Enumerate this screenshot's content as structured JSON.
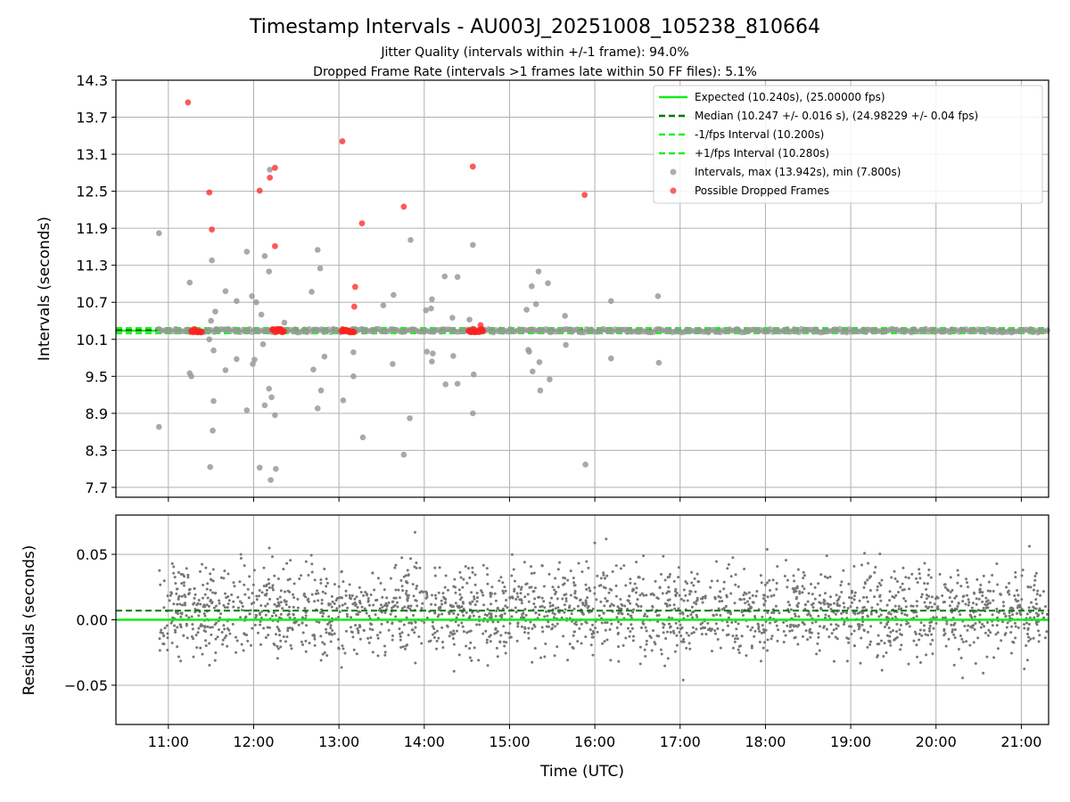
{
  "chart_data": {
    "type": "scatter",
    "title": "Timestamp Intervals - AU003J_20251008_105238_810664",
    "subtitle_line1": "Jitter Quality (intervals within +/-1 frame): 94.0%",
    "subtitle_line2": "Dropped Frame Rate (intervals >1 frames late within 50 FF files): 5.1%",
    "xlabel": "Time (UTC)",
    "x_ticks": [
      "11:00",
      "12:00",
      "13:00",
      "14:00",
      "15:00",
      "16:00",
      "17:00",
      "18:00",
      "19:00",
      "20:00",
      "21:00"
    ],
    "x_range_hours": [
      10.385,
      21.32
    ],
    "top": {
      "ylabel": "Intervals (seconds)",
      "ylim": [
        7.54,
        14.3
      ],
      "y_ticks": [
        "7.7",
        "8.3",
        "8.9",
        "9.5",
        "10.1",
        "10.7",
        "11.3",
        "11.9",
        "12.5",
        "13.1",
        "13.7",
        "14.3"
      ],
      "expected": 10.24,
      "median": 10.247,
      "minus_interval": 10.2,
      "plus_interval": 10.28,
      "legend_position": "top-right",
      "legend": [
        "Expected (10.240s), (25.00000 fps)",
        "Median (10.247 +/- 0.016 s), (24.98229 +/- 0.04 fps)",
        "-1/fps Interval (10.200s)",
        "+1/fps Interval (10.280s)",
        "Intervals, max (13.942s), min (7.800s)",
        "Possible Dropped Frames"
      ],
      "gray_outliers": [
        [
          10.89,
          11.82
        ],
        [
          10.89,
          8.68
        ],
        [
          11.25,
          11.02
        ],
        [
          11.25,
          9.55
        ],
        [
          11.27,
          9.5
        ],
        [
          11.48,
          10.1
        ],
        [
          11.49,
          8.03
        ],
        [
          11.5,
          10.4
        ],
        [
          11.51,
          11.38
        ],
        [
          11.52,
          8.62
        ],
        [
          11.53,
          9.1
        ],
        [
          11.53,
          9.92
        ],
        [
          11.55,
          10.55
        ],
        [
          11.67,
          9.6
        ],
        [
          11.67,
          10.88
        ],
        [
          11.8,
          10.72
        ],
        [
          11.8,
          9.78
        ],
        [
          11.92,
          11.52
        ],
        [
          11.92,
          8.95
        ],
        [
          11.98,
          10.8
        ],
        [
          11.99,
          9.7
        ],
        [
          12.01,
          9.77
        ],
        [
          12.03,
          10.7
        ],
        [
          12.07,
          8.02
        ],
        [
          12.09,
          10.5
        ],
        [
          12.11,
          10.02
        ],
        [
          12.13,
          11.45
        ],
        [
          12.13,
          9.03
        ],
        [
          12.18,
          11.2
        ],
        [
          12.18,
          9.3
        ],
        [
          12.19,
          12.85
        ],
        [
          12.2,
          7.82
        ],
        [
          12.21,
          9.16
        ],
        [
          12.25,
          8.87
        ],
        [
          12.26,
          8.0
        ],
        [
          12.36,
          10.37
        ],
        [
          12.68,
          10.87
        ],
        [
          12.7,
          9.61
        ],
        [
          12.75,
          11.55
        ],
        [
          12.75,
          8.98
        ],
        [
          12.78,
          11.25
        ],
        [
          12.79,
          9.27
        ],
        [
          12.83,
          9.82
        ],
        [
          13.05,
          9.11
        ],
        [
          13.17,
          9.89
        ],
        [
          13.17,
          9.5
        ],
        [
          13.28,
          8.51
        ],
        [
          13.52,
          10.65
        ],
        [
          13.63,
          9.7
        ],
        [
          13.64,
          10.82
        ],
        [
          13.76,
          8.23
        ],
        [
          13.83,
          8.82
        ],
        [
          13.84,
          11.71
        ],
        [
          14.02,
          10.57
        ],
        [
          14.03,
          9.9
        ],
        [
          14.08,
          10.6
        ],
        [
          14.09,
          9.74
        ],
        [
          14.09,
          10.75
        ],
        [
          14.1,
          9.87
        ],
        [
          14.24,
          11.12
        ],
        [
          14.25,
          9.37
        ],
        [
          14.33,
          10.45
        ],
        [
          14.34,
          9.83
        ],
        [
          14.39,
          11.11
        ],
        [
          14.39,
          9.38
        ],
        [
          14.53,
          10.42
        ],
        [
          14.57,
          11.63
        ],
        [
          14.58,
          9.53
        ],
        [
          14.57,
          8.9
        ],
        [
          15.2,
          10.58
        ],
        [
          15.22,
          9.93
        ],
        [
          15.23,
          9.9
        ],
        [
          15.26,
          10.96
        ],
        [
          15.27,
          9.58
        ],
        [
          15.31,
          10.67
        ],
        [
          15.34,
          11.2
        ],
        [
          15.35,
          9.73
        ],
        [
          15.36,
          9.27
        ],
        [
          15.45,
          11.01
        ],
        [
          15.47,
          9.45
        ],
        [
          15.65,
          10.48
        ],
        [
          15.66,
          10.01
        ],
        [
          15.89,
          8.07
        ],
        [
          16.19,
          10.72
        ],
        [
          16.19,
          9.79
        ],
        [
          16.74,
          10.8
        ],
        [
          16.75,
          9.72
        ]
      ],
      "red_points": [
        [
          11.23,
          13.94
        ],
        [
          11.48,
          12.48
        ],
        [
          11.51,
          11.88
        ],
        [
          12.07,
          12.51
        ],
        [
          12.19,
          12.72
        ],
        [
          12.25,
          12.88
        ],
        [
          12.25,
          11.61
        ],
        [
          13.04,
          13.31
        ],
        [
          13.19,
          10.95
        ],
        [
          13.18,
          10.63
        ],
        [
          13.27,
          11.98
        ],
        [
          13.76,
          12.25
        ],
        [
          14.57,
          12.9
        ],
        [
          15.88,
          12.44
        ],
        [
          14.66,
          10.33
        ]
      ],
      "red_clusters": [
        [
          11.27,
          11.4
        ],
        [
          12.22,
          12.36
        ],
        [
          13.03,
          13.18
        ],
        [
          14.52,
          14.7
        ]
      ]
    },
    "bottom": {
      "ylabel": "Residuals (seconds)",
      "ylim": [
        -0.08,
        0.08
      ],
      "y_ticks": [
        "−0.05",
        "0.00",
        "0.05"
      ],
      "median_residual": 0.007,
      "spread_sd": 0.017,
      "point_count": 2300
    },
    "colors": {
      "expected": "#11ee11",
      "median": "#007700",
      "interval": "#22ee22",
      "gray": "#9a9a9a",
      "red": "#ff2020",
      "residual": "#777777",
      "grid": "#b0b0b0"
    }
  }
}
